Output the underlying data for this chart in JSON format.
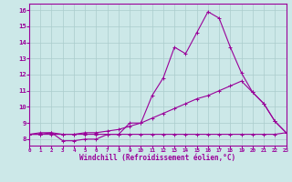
{
  "xlabel": "Windchill (Refroidissement éolien,°C)",
  "ylabel": "",
  "bg_color": "#cce8e8",
  "line_color": "#990099",
  "grid_color": "#aacccc",
  "x_values": [
    0,
    1,
    2,
    3,
    4,
    5,
    6,
    7,
    8,
    9,
    10,
    11,
    12,
    13,
    14,
    15,
    16,
    17,
    18,
    19,
    20,
    21,
    22,
    23
  ],
  "line1": [
    8.3,
    8.4,
    8.4,
    7.9,
    7.9,
    8.0,
    8.0,
    8.3,
    8.3,
    9.0,
    9.0,
    10.7,
    11.8,
    13.7,
    13.3,
    14.6,
    15.9,
    15.5,
    13.7,
    12.1,
    10.9,
    10.2,
    9.1,
    8.4
  ],
  "line2": [
    8.3,
    8.3,
    8.4,
    8.3,
    8.3,
    8.4,
    8.4,
    8.5,
    8.6,
    8.8,
    9.0,
    9.3,
    9.6,
    9.9,
    10.2,
    10.5,
    10.7,
    11.0,
    11.3,
    11.6,
    10.9,
    10.2,
    9.1,
    8.4
  ],
  "line3": [
    8.3,
    8.3,
    8.3,
    8.3,
    8.3,
    8.3,
    8.3,
    8.3,
    8.3,
    8.3,
    8.3,
    8.3,
    8.3,
    8.3,
    8.3,
    8.3,
    8.3,
    8.3,
    8.3,
    8.3,
    8.3,
    8.3,
    8.3,
    8.4
  ],
  "ylim": [
    7.6,
    16.4
  ],
  "xlim": [
    0,
    23
  ],
  "yticks": [
    8,
    9,
    10,
    11,
    12,
    13,
    14,
    15,
    16
  ],
  "xticks": [
    0,
    1,
    2,
    3,
    4,
    5,
    6,
    7,
    8,
    9,
    10,
    11,
    12,
    13,
    14,
    15,
    16,
    17,
    18,
    19,
    20,
    21,
    22,
    23
  ]
}
